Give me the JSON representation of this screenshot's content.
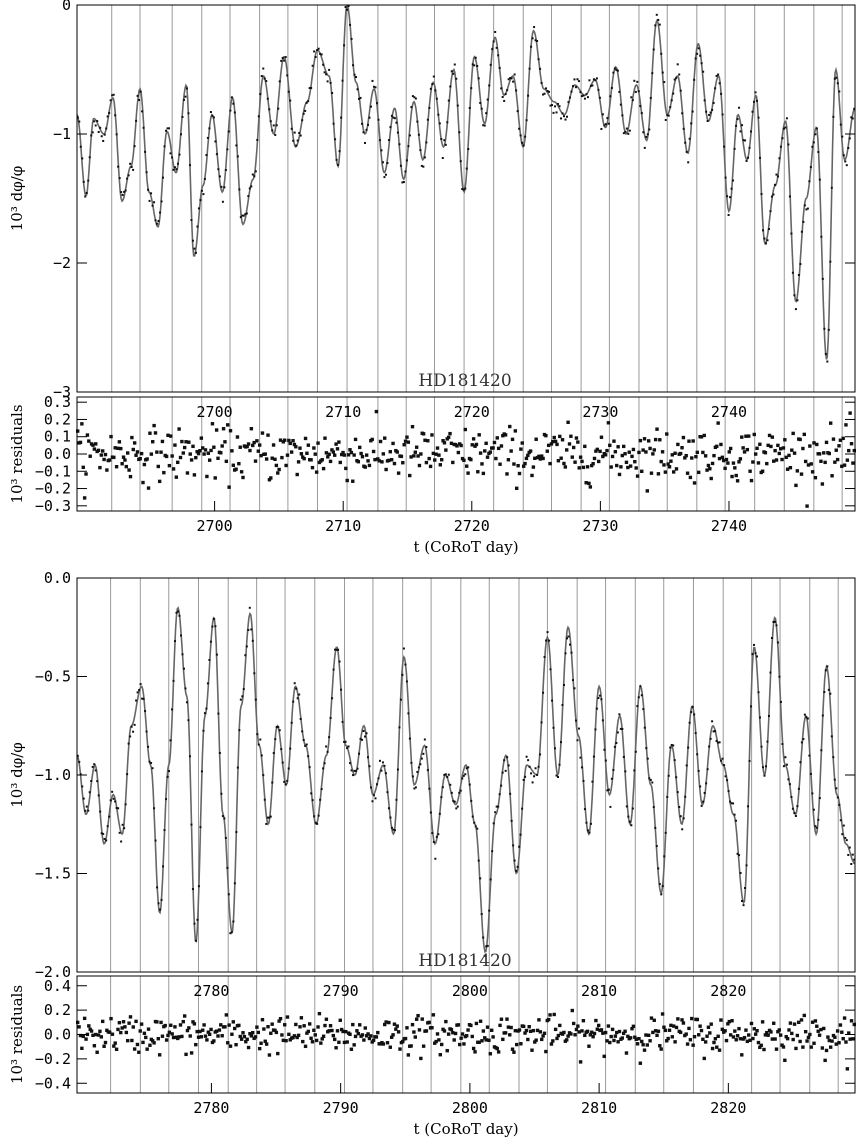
{
  "chart_data": [
    {
      "type": "line",
      "panel": "top-main",
      "annotation": "HD181420",
      "ylabel": "10³ dφ/φ",
      "xlim": [
        2689.3,
        2749.8
      ],
      "ylim": [
        -3,
        0
      ],
      "yticks": [
        "0",
        "−1",
        "−2",
        "−3"
      ],
      "ytick_values": [
        0,
        -1,
        -2,
        -3
      ],
      "vlines": [
        2692.0,
        2694.2,
        2696.7,
        2699.0,
        2701.2,
        2703.5,
        2705.7,
        2708.0,
        2710.3,
        2712.7,
        2714.9,
        2717.1,
        2719.4,
        2721.7,
        2724.0,
        2726.2,
        2728.5,
        2730.7,
        2733.0,
        2735.2,
        2737.5,
        2739.7,
        2742.0,
        2744.3,
        2746.6,
        2748.8
      ],
      "series": [
        {
          "style": "line",
          "x": [
            2689.3,
            2690,
            2690.6,
            2691.4,
            2692.1,
            2692.8,
            2693.5,
            2694.2,
            2694.9,
            2695.6,
            2696.3,
            2697.0,
            2697.8,
            2698.4,
            2699.1,
            2699.8,
            2700.6,
            2701.4,
            2702.2,
            2703.0,
            2703.8,
            2704.6,
            2705.4,
            2706.3,
            2707.2,
            2708.0,
            2708.9,
            2709.6,
            2710.3,
            2711.0,
            2711.7,
            2712.4,
            2713.2,
            2714.0,
            2714.7,
            2715.5,
            2716.2,
            2717.0,
            2717.8,
            2718.6,
            2719.4,
            2720.2,
            2721.0,
            2721.8,
            2722.5,
            2723.2,
            2724.0,
            2724.8,
            2725.6,
            2726.4,
            2727.2,
            2728.0,
            2728.8,
            2729.6,
            2730.4,
            2731.2,
            2732.0,
            2732.8,
            2733.6,
            2734.4,
            2735.2,
            2736.0,
            2736.8,
            2737.6,
            2738.4,
            2739.2,
            2740.0,
            2740.7,
            2741.4,
            2742.1,
            2742.8,
            2743.6,
            2744.4,
            2745.2,
            2746.0,
            2746.8,
            2747.6,
            2748.3,
            2749.0,
            2749.8
          ],
          "y": [
            -0.85,
            -1.48,
            -0.88,
            -1.0,
            -0.72,
            -1.52,
            -1.25,
            -0.65,
            -1.45,
            -1.72,
            -0.98,
            -1.3,
            -0.62,
            -1.95,
            -1.4,
            -0.85,
            -1.45,
            -0.72,
            -1.7,
            -1.35,
            -0.55,
            -1.0,
            -0.4,
            -1.1,
            -0.75,
            -0.35,
            -0.55,
            -1.25,
            0.0,
            -0.6,
            -1.0,
            -0.65,
            -1.3,
            -0.8,
            -1.35,
            -0.75,
            -1.2,
            -0.6,
            -1.1,
            -0.5,
            -1.45,
            -0.4,
            -0.92,
            -0.25,
            -0.7,
            -0.55,
            -1.1,
            -0.2,
            -0.65,
            -0.75,
            -0.85,
            -0.62,
            -0.7,
            -0.58,
            -0.95,
            -0.48,
            -1.0,
            -0.62,
            -1.05,
            -0.12,
            -0.85,
            -0.55,
            -1.15,
            -0.3,
            -0.9,
            -0.55,
            -1.6,
            -0.85,
            -1.2,
            -0.7,
            -1.85,
            -1.4,
            -0.9,
            -2.3,
            -1.5,
            -0.95,
            -2.75,
            -0.5,
            -1.2,
            -0.8
          ]
        }
      ]
    },
    {
      "type": "scatter",
      "panel": "top-residuals",
      "xlabel": "t (CoRoT day)",
      "ylabel": "10³ residuals",
      "xlim": [
        2689.3,
        2749.8
      ],
      "ylim": [
        -0.33,
        0.33
      ],
      "xticks": [
        "2700",
        "2710",
        "2720",
        "2730",
        "2740"
      ],
      "xtick_values": [
        2700,
        2710,
        2720,
        2730,
        2740
      ],
      "yticks": [
        "0.3",
        "0.2",
        "0.1",
        "0.0",
        "−0.1",
        "−0.2",
        "−0.3"
      ],
      "ytick_values": [
        0.3,
        0.2,
        0.1,
        0.0,
        -0.1,
        -0.2,
        -0.3
      ],
      "noise_amplitude": 0.1
    },
    {
      "type": "line",
      "panel": "bottom-main",
      "annotation": "HD181420",
      "ylabel": "10³ dφ/φ",
      "xlim": [
        2769.6,
        2829.8
      ],
      "ylim": [
        -2.0,
        0.0
      ],
      "yticks": [
        "0.0",
        "−0.5",
        "−1.0",
        "−1.5",
        "−2.0"
      ],
      "ytick_values": [
        0.0,
        -0.5,
        -1.0,
        -1.5,
        -2.0
      ],
      "vlines": [
        2772.2,
        2774.5,
        2776.7,
        2779.0,
        2781.3,
        2783.5,
        2785.7,
        2788.0,
        2790.3,
        2792.5,
        2794.8,
        2797.0,
        2799.3,
        2801.5,
        2803.8,
        2806.0,
        2808.3,
        2810.5,
        2812.8,
        2815.0,
        2817.3,
        2819.6,
        2821.8,
        2824.0,
        2826.3,
        2828.5
      ],
      "series": [
        {
          "style": "line",
          "x": [
            2769.6,
            2770.3,
            2771.0,
            2771.7,
            2772.4,
            2773.1,
            2773.8,
            2774.6,
            2775.3,
            2776.0,
            2776.7,
            2777.4,
            2778.1,
            2778.8,
            2779.5,
            2780.2,
            2780.9,
            2781.6,
            2782.3,
            2783.0,
            2783.7,
            2784.4,
            2785.1,
            2785.8,
            2786.5,
            2787.3,
            2788.1,
            2788.9,
            2789.7,
            2790.4,
            2791.1,
            2791.8,
            2792.5,
            2793.3,
            2794.1,
            2794.9,
            2795.7,
            2796.5,
            2797.3,
            2798.1,
            2798.9,
            2799.7,
            2800.4,
            2801.2,
            2802.0,
            2802.8,
            2803.6,
            2804.4,
            2805.2,
            2806.0,
            2806.8,
            2807.6,
            2808.4,
            2809.2,
            2810.0,
            2810.8,
            2811.6,
            2812.4,
            2813.2,
            2814.0,
            2814.8,
            2815.6,
            2816.4,
            2817.2,
            2818.0,
            2818.8,
            2819.6,
            2820.4,
            2821.2,
            2822.0,
            2822.8,
            2823.6,
            2824.4,
            2825.2,
            2826.0,
            2826.8,
            2827.6,
            2828.4,
            2829.1,
            2829.8
          ],
          "y": [
            -0.9,
            -1.2,
            -0.95,
            -1.35,
            -1.1,
            -1.3,
            -0.75,
            -0.55,
            -0.95,
            -1.7,
            -0.95,
            -0.15,
            -0.6,
            -1.85,
            -0.7,
            -0.2,
            -1.2,
            -1.8,
            -0.65,
            -0.18,
            -0.85,
            -1.25,
            -0.75,
            -1.05,
            -0.55,
            -0.85,
            -1.25,
            -0.9,
            -0.35,
            -0.85,
            -1.0,
            -0.75,
            -1.1,
            -0.95,
            -1.3,
            -0.4,
            -1.05,
            -0.85,
            -1.35,
            -1.0,
            -1.15,
            -0.95,
            -1.25,
            -1.9,
            -1.2,
            -0.9,
            -1.5,
            -0.95,
            -1.0,
            -0.3,
            -1.0,
            -0.25,
            -0.8,
            -1.3,
            -0.55,
            -1.1,
            -0.7,
            -1.25,
            -0.55,
            -1.05,
            -1.6,
            -0.85,
            -1.25,
            -0.65,
            -1.15,
            -0.75,
            -0.95,
            -1.2,
            -1.65,
            -0.35,
            -1.0,
            -0.2,
            -0.95,
            -1.2,
            -0.7,
            -1.3,
            -0.45,
            -1.1,
            -1.35,
            -1.45
          ]
        }
      ]
    },
    {
      "type": "scatter",
      "panel": "bottom-residuals",
      "xlabel": "t (CoRoT day)",
      "ylabel": "10³ residuals",
      "xlim": [
        2769.6,
        2829.8
      ],
      "ylim": [
        -0.48,
        0.48
      ],
      "xticks": [
        "2780",
        "2790",
        "2800",
        "2810",
        "2820"
      ],
      "xtick_values": [
        2780,
        2790,
        2800,
        2810,
        2820
      ],
      "yticks": [
        "0.4",
        "0.2",
        "0.0",
        "−0.2",
        "−0.4"
      ],
      "ytick_values": [
        0.4,
        0.2,
        0.0,
        -0.2,
        -0.4
      ],
      "noise_amplitude": 0.1
    }
  ]
}
